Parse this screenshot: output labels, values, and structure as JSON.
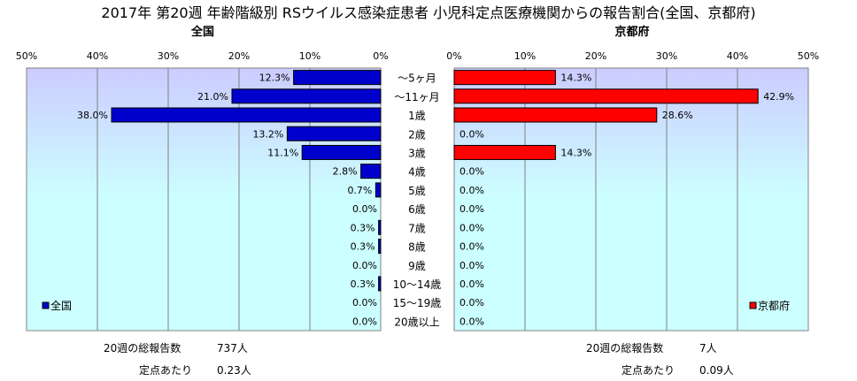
{
  "title": "2017年 第20週 年齢階級別 RSウイルス感染症患者 小児科定点医療機関からの報告割合(全国、京都府)",
  "chart_data": [
    {
      "type": "bar",
      "orientation": "horizontal",
      "subtitle": "全国",
      "categories": [
        "～5ヶ月",
        "～11ヶ月",
        "1歳",
        "2歳",
        "3歳",
        "4歳",
        "5歳",
        "6歳",
        "7歳",
        "8歳",
        "9歳",
        "10～14歳",
        "15～19歳",
        "20歳以上"
      ],
      "series": [
        {
          "name": "全国",
          "color": "#0000cc",
          "values": [
            12.3,
            21.0,
            38.0,
            13.2,
            11.1,
            2.8,
            0.7,
            0.0,
            0.3,
            0.3,
            0.0,
            0.3,
            0.0,
            0.0
          ],
          "labels": [
            "12.3%",
            "21.0%",
            "38.0%",
            "13.2%",
            "11.1%",
            "2.8%",
            "0.7%",
            "0.0%",
            "0.3%",
            "0.3%",
            "0.0%",
            "0.3%",
            "0.0%",
            "0.0%"
          ]
        }
      ],
      "xlim": [
        0,
        50
      ],
      "x_ticks": [
        "50%",
        "40%",
        "30%",
        "20%",
        "10%",
        "0%"
      ],
      "x_reversed": true,
      "grid": true,
      "legend": "bottom-left"
    },
    {
      "type": "bar",
      "orientation": "horizontal",
      "subtitle": "京都府",
      "categories": [
        "～5ヶ月",
        "～11ヶ月",
        "1歳",
        "2歳",
        "3歳",
        "4歳",
        "5歳",
        "6歳",
        "7歳",
        "8歳",
        "9歳",
        "10～14歳",
        "15～19歳",
        "20歳以上"
      ],
      "series": [
        {
          "name": "京都府",
          "color": "#ff0000",
          "values": [
            14.3,
            42.9,
            28.6,
            0.0,
            14.3,
            0.0,
            0.0,
            0.0,
            0.0,
            0.0,
            0.0,
            0.0,
            0.0,
            0.0
          ],
          "labels": [
            "14.3%",
            "42.9%",
            "28.6%",
            "0.0%",
            "14.3%",
            "0.0%",
            "0.0%",
            "0.0%",
            "0.0%",
            "0.0%",
            "0.0%",
            "0.0%",
            "0.0%",
            "0.0%"
          ]
        }
      ],
      "xlim": [
        0,
        50
      ],
      "x_ticks": [
        "0%",
        "10%",
        "20%",
        "30%",
        "40%",
        "50%"
      ],
      "grid": true,
      "legend": "bottom-right"
    }
  ],
  "footer": {
    "national_total_label": "20週の総報告数",
    "national_total_value": "737人",
    "national_per_label": "定点あたり",
    "national_per_value": "0.23人",
    "kyoto_total_label": "20週の総報告数",
    "kyoto_total_value": "7人",
    "kyoto_per_label": "定点あたり",
    "kyoto_per_value": "0.09人"
  },
  "colors": {
    "national": "#0000cc",
    "kyoto": "#ff0000",
    "plot_top": "#ccccff",
    "plot_bottom": "#ccffff"
  }
}
